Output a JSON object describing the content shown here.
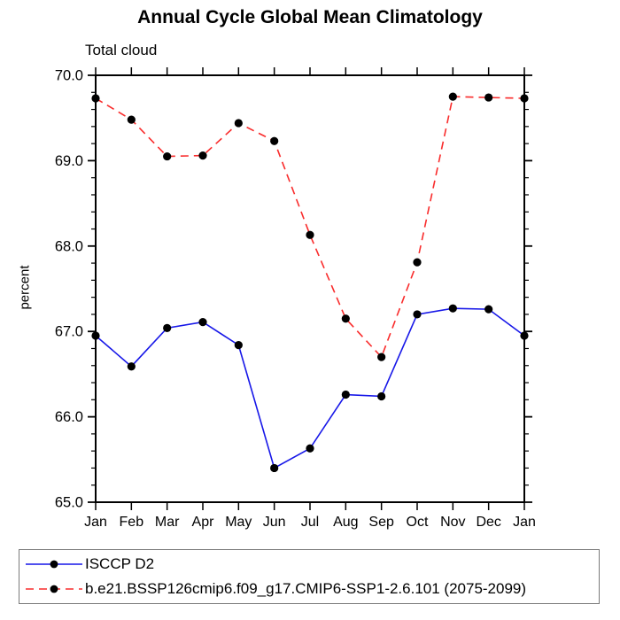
{
  "title": "Annual Cycle Global Mean Climatology",
  "chart_data": {
    "type": "line",
    "title": "Annual Cycle Global Mean Climatology",
    "subtitle": "Total cloud",
    "xlabel": "",
    "ylabel": "percent",
    "x_categories": [
      "Jan",
      "Feb",
      "Mar",
      "Apr",
      "May",
      "Jun",
      "Jul",
      "Aug",
      "Sep",
      "Oct",
      "Nov",
      "Dec",
      "Jan"
    ],
    "ylim": [
      65.0,
      70.0
    ],
    "y_major_tick_labels": [
      "65.0",
      "66.0",
      "67.0",
      "68.0",
      "69.0",
      "70.0"
    ],
    "y_minor_step": 0.2,
    "grid": false,
    "legend_position": "bottom-left-box",
    "axis_color": "#000000",
    "marker_color": "#000000",
    "series": [
      {
        "name": "ISCCP D2",
        "color": "#1717E8",
        "style": "solid",
        "marker": "filled-circle",
        "values": [
          66.95,
          66.59,
          67.04,
          67.11,
          66.84,
          65.4,
          65.63,
          66.26,
          66.24,
          67.2,
          67.27,
          67.26,
          66.95
        ]
      },
      {
        "name": "b.e21.BSSP126cmip6.f09_g17.CMIP6-SSP1-2.6.101 (2075-2099)",
        "color": "#F92C2C",
        "style": "dashed",
        "marker": "filled-circle",
        "values": [
          69.73,
          69.48,
          69.05,
          69.06,
          69.44,
          69.23,
          68.13,
          67.15,
          66.7,
          67.81,
          69.75,
          69.74,
          69.73
        ]
      }
    ]
  }
}
